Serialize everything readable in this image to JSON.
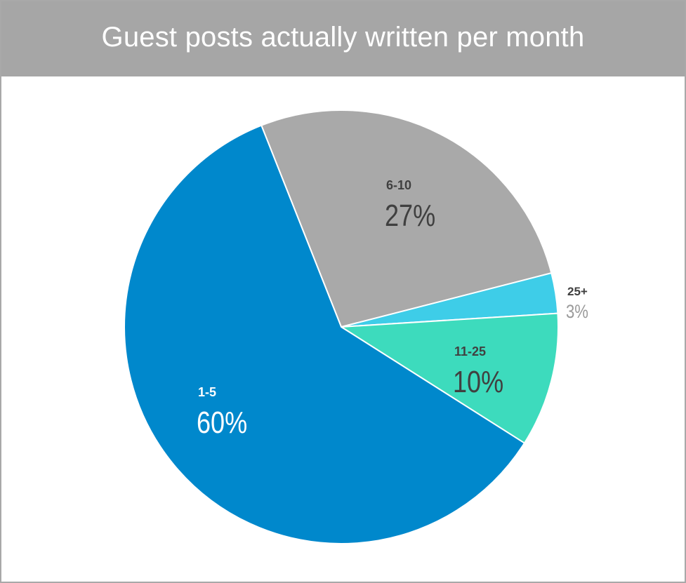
{
  "chart_data": {
    "type": "pie",
    "title": "Guest posts actually written per month",
    "slices": [
      {
        "label": "6-10",
        "value": 27,
        "display": "27%",
        "color": "#a9a9a9",
        "label_color": "#404040",
        "pct_color": "#404040"
      },
      {
        "label": "25+",
        "value": 3,
        "display": "3%",
        "color": "#3ecde8",
        "label_color": "#404040",
        "pct_color": "#9a9a9a"
      },
      {
        "label": "11-25",
        "value": 10,
        "display": "10%",
        "color": "#3ddbbd",
        "label_color": "#404040",
        "pct_color": "#404040"
      },
      {
        "label": "1-5",
        "value": 60,
        "display": "60%",
        "color": "#0088cc",
        "label_color": "#ffffff",
        "pct_color": "#ffffff"
      }
    ]
  }
}
